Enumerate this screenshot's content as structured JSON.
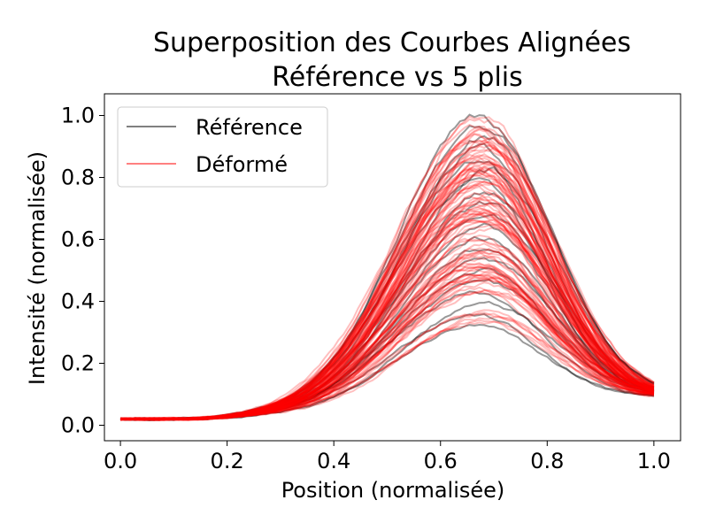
{
  "chart_data": {
    "type": "line",
    "title_lines": [
      "Superposition des Courbes Alignées",
      "Référence vs 5 plis"
    ],
    "xlabel": "Position (normalisée)",
    "ylabel": "Intensité (normalisée)",
    "xlim": [
      -0.03,
      1.05
    ],
    "ylim": [
      -0.05,
      1.07
    ],
    "xticks": [
      0.0,
      0.2,
      0.4,
      0.6,
      0.8,
      1.0
    ],
    "xtick_labels": [
      "0.0",
      "0.2",
      "0.4",
      "0.6",
      "0.8",
      "1.0"
    ],
    "yticks": [
      0.0,
      0.2,
      0.4,
      0.6,
      0.8,
      1.0
    ],
    "ytick_labels": [
      "0.0",
      "0.2",
      "0.4",
      "0.6",
      "0.8",
      "1.0"
    ],
    "grid": false,
    "legend": {
      "placement": "top-left",
      "entries": [
        {
          "name": "Référence",
          "color": "#808080"
        },
        {
          "name": "Déformé",
          "color": "#ff8080"
        }
      ]
    },
    "series_colors": {
      "reference": "#000000",
      "deformed": "#ff0000"
    },
    "curve_model": {
      "peak_position": 0.68,
      "baseline": 0.02,
      "peak_min": 0.32,
      "peak_max": 1.0,
      "reference_count": 20,
      "deformed_count": 100
    }
  }
}
